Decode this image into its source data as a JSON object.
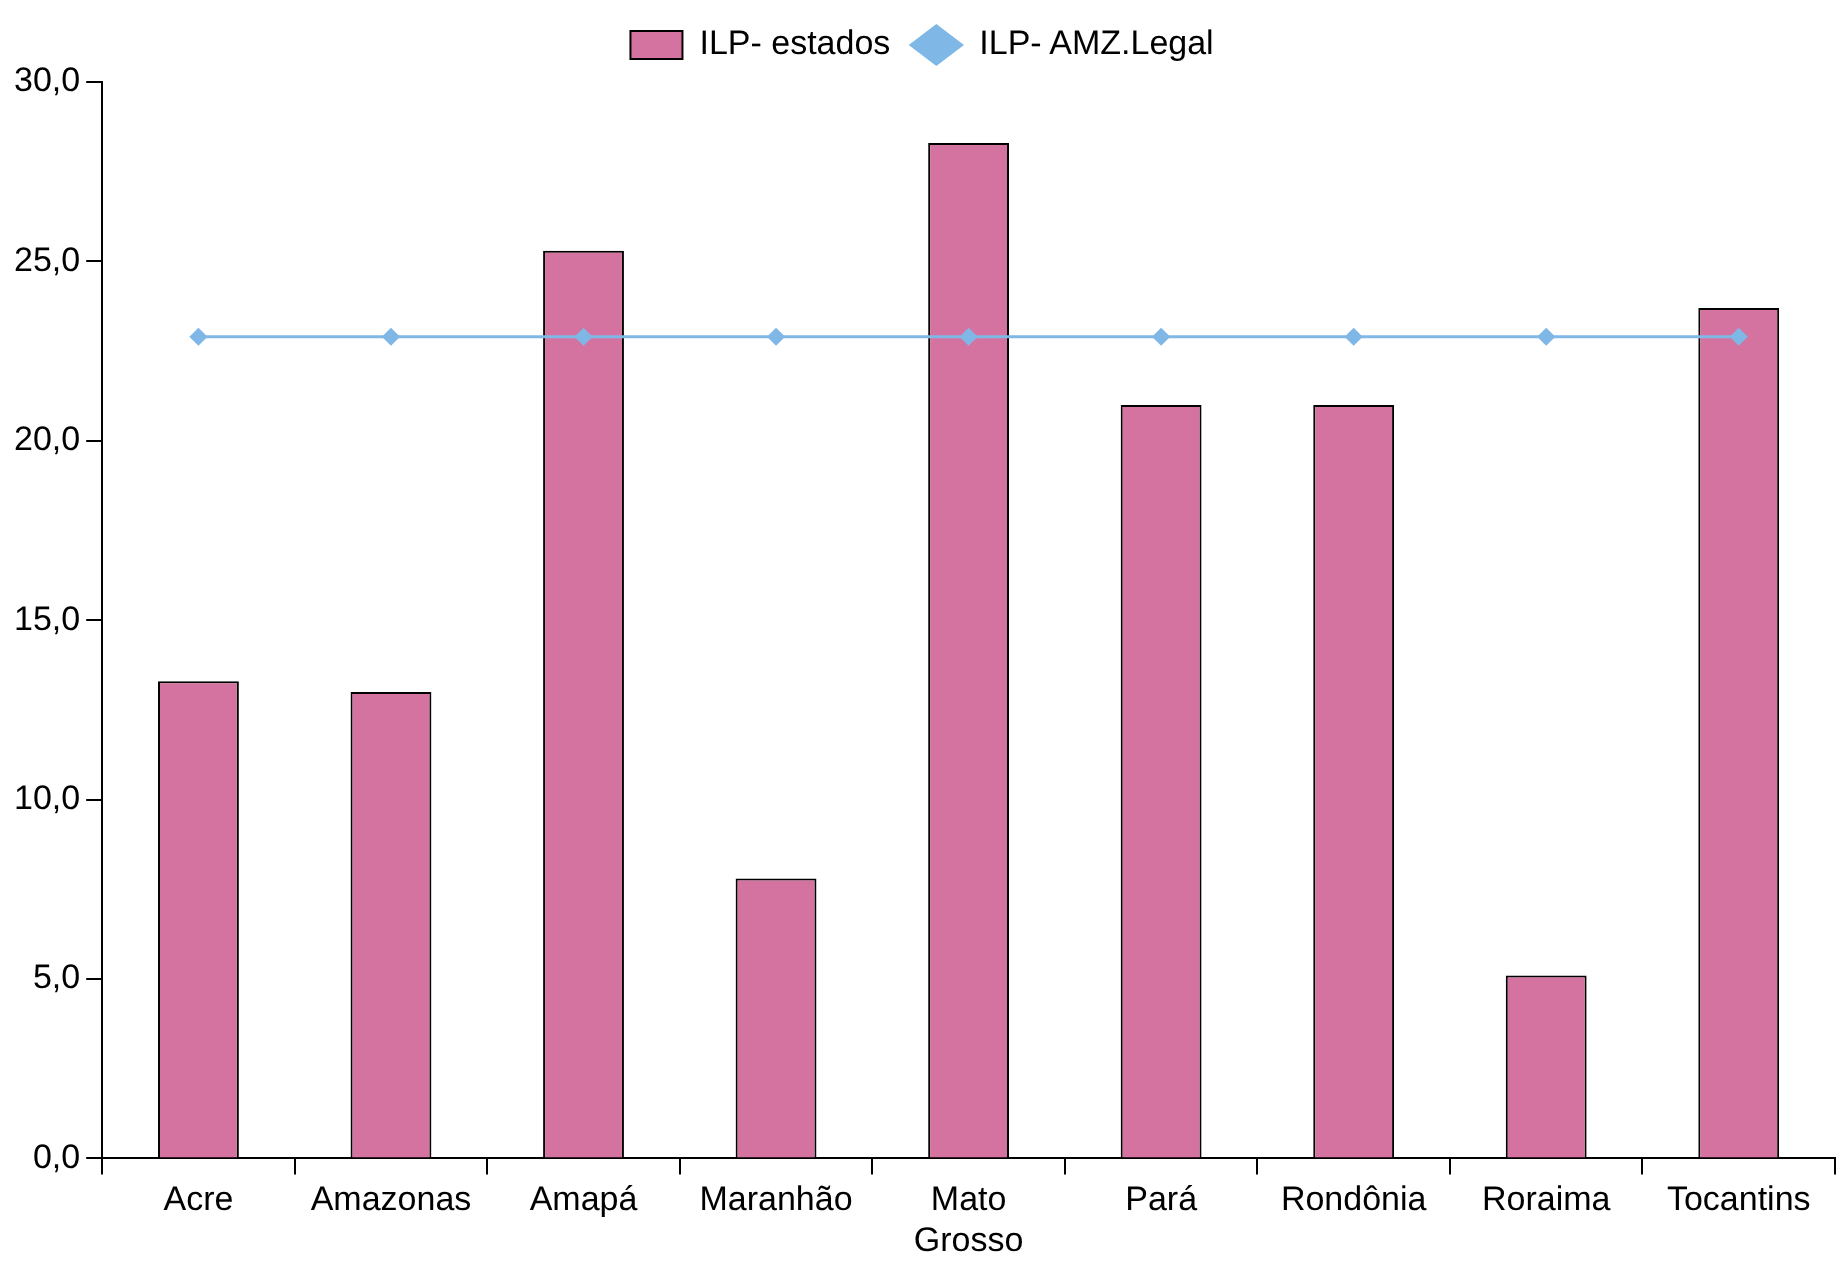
{
  "chart_data": {
    "type": "bar",
    "categories": [
      "Acre",
      "Amazonas",
      "Amapá",
      "Maranhão",
      "Mato Grosso",
      "Pará",
      "Rondônia",
      "Roraima",
      "Tocantins"
    ],
    "series": [
      {
        "name": "ILP- estados",
        "color": "#d4739f",
        "values": [
          13.3,
          13.0,
          25.3,
          7.8,
          28.3,
          21.0,
          21.0,
          5.1,
          23.7
        ]
      },
      {
        "name": "ILP- AMZ.Legal",
        "type": "line",
        "color": "#7fb7e6",
        "marker": "diamond",
        "values": [
          22.9,
          22.9,
          22.9,
          22.9,
          22.9,
          22.9,
          22.9,
          22.9,
          22.9
        ]
      }
    ],
    "ylim": [
      0,
      30
    ],
    "yticks": [
      {
        "value": 0,
        "label": "0,0"
      },
      {
        "value": 5,
        "label": "5,0"
      },
      {
        "value": 10,
        "label": "10,0"
      },
      {
        "value": 15,
        "label": "15,0"
      },
      {
        "value": 20,
        "label": "20,0"
      },
      {
        "value": 25,
        "label": "25,0"
      },
      {
        "value": 30,
        "label": "30,0"
      }
    ],
    "grid": false,
    "legend": "top"
  }
}
